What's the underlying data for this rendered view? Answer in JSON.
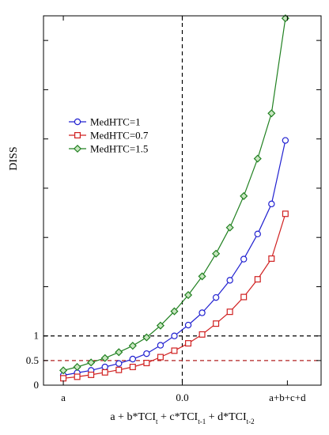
{
  "chart_data": {
    "type": "line",
    "xlabel": {
      "parts": [
        {
          "text": "a + b*TCI",
          "sub": false
        },
        {
          "text": "t",
          "sub": true
        },
        {
          "text": " + c*TCI",
          "sub": false
        },
        {
          "text": "t-1",
          "sub": true
        },
        {
          "text": " + d*TCI",
          "sub": false
        },
        {
          "text": "t-2",
          "sub": true
        }
      ]
    },
    "ylabel": "DISS",
    "x_ticks": [
      {
        "value": -6,
        "label": "a"
      },
      {
        "value": 0,
        "label": "0.0"
      },
      {
        "value": 5.3,
        "label": "a+b+c+d"
      }
    ],
    "y_ticks": [
      {
        "value": 0,
        "label": "0"
      },
      {
        "value": 0.5,
        "label": "0.5"
      },
      {
        "value": 1,
        "label": "1"
      },
      {
        "value": 2,
        "label": ""
      },
      {
        "value": 3,
        "label": ""
      },
      {
        "value": 4,
        "label": ""
      },
      {
        "value": 5,
        "label": ""
      },
      {
        "value": 6,
        "label": ""
      },
      {
        "value": 7,
        "label": ""
      }
    ],
    "xlim": [
      -7,
      7
    ],
    "ylim": [
      0,
      7.5
    ],
    "reference_lines": [
      {
        "orientation": "vertical",
        "value": 0,
        "color": "#000000",
        "dash": "dashed"
      },
      {
        "orientation": "horizontal",
        "value": 1,
        "color": "#000000",
        "dash": "dashed"
      },
      {
        "orientation": "horizontal",
        "value": 0.5,
        "color": "#b22222",
        "dash": "dashed"
      }
    ],
    "x": [
      -6,
      -5.3,
      -4.6,
      -3.9,
      -3.2,
      -2.5,
      -1.8,
      -1.1,
      -0.4,
      0.3,
      1.0,
      1.7,
      2.4,
      3.1,
      3.8,
      4.5,
      5.2
    ],
    "series": [
      {
        "name": "MedHTC=1",
        "color": "#2020d0",
        "marker": "circle",
        "values": [
          0.2,
          0.25,
          0.3,
          0.37,
          0.44,
          0.53,
          0.64,
          0.81,
          1.0,
          1.22,
          1.47,
          1.78,
          2.13,
          2.56,
          3.07,
          3.68,
          4.97
        ]
      },
      {
        "name": "MedHTC=0.7",
        "color": "#d02020",
        "marker": "square",
        "values": [
          0.14,
          0.17,
          0.21,
          0.26,
          0.31,
          0.37,
          0.45,
          0.57,
          0.7,
          0.85,
          1.03,
          1.25,
          1.49,
          1.79,
          2.15,
          2.57,
          3.48
        ]
      },
      {
        "name": "MedHTC=1.5",
        "color": "#208020",
        "marker": "diamond",
        "values": [
          0.3,
          0.37,
          0.46,
          0.55,
          0.67,
          0.8,
          0.97,
          1.21,
          1.5,
          1.83,
          2.21,
          2.67,
          3.2,
          3.84,
          4.6,
          5.52,
          7.45
        ]
      }
    ],
    "legend_position": "top-left",
    "grid": false
  }
}
